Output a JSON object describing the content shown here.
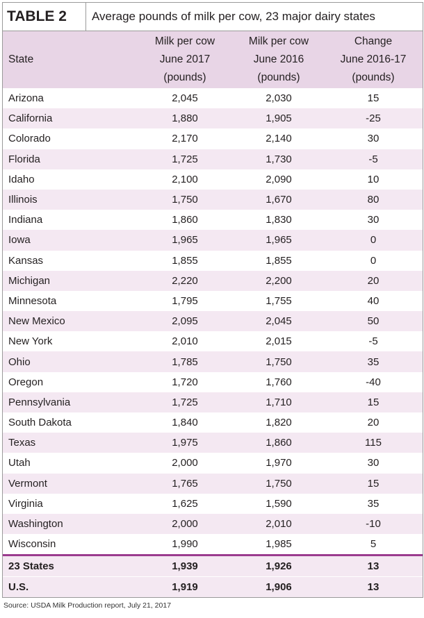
{
  "header": {
    "label": "TABLE 2",
    "title": "Average pounds of milk per cow, 23 major dairy states"
  },
  "table": {
    "columns": [
      [
        "State"
      ],
      [
        "Milk per cow",
        "June 2017",
        "(pounds)"
      ],
      [
        "Milk per cow",
        "June 2016",
        "(pounds)"
      ],
      [
        "Change",
        "June 2016-17",
        "(pounds)"
      ]
    ],
    "rows": [
      [
        "Arizona",
        "2,045",
        "2,030",
        "15"
      ],
      [
        "California",
        "1,880",
        "1,905",
        "-25"
      ],
      [
        "Colorado",
        "2,170",
        "2,140",
        "30"
      ],
      [
        "Florida",
        "1,725",
        "1,730",
        "-5"
      ],
      [
        "Idaho",
        "2,100",
        "2,090",
        "10"
      ],
      [
        "Illinois",
        "1,750",
        "1,670",
        "80"
      ],
      [
        "Indiana",
        "1,860",
        "1,830",
        "30"
      ],
      [
        "Iowa",
        "1,965",
        "1,965",
        "0"
      ],
      [
        "Kansas",
        "1,855",
        "1,855",
        "0"
      ],
      [
        "Michigan",
        "2,220",
        "2,200",
        "20"
      ],
      [
        "Minnesota",
        "1,795",
        "1,755",
        "40"
      ],
      [
        "New Mexico",
        "2,095",
        "2,045",
        "50"
      ],
      [
        "New York",
        "2,010",
        "2,015",
        "-5"
      ],
      [
        "Ohio",
        "1,785",
        "1,750",
        "35"
      ],
      [
        "Oregon",
        "1,720",
        "1,760",
        "-40"
      ],
      [
        "Pennsylvania",
        "1,725",
        "1,710",
        "15"
      ],
      [
        "South Dakota",
        "1,840",
        "1,820",
        "20"
      ],
      [
        "Texas",
        "1,975",
        "1,860",
        "115"
      ],
      [
        "Utah",
        "2,000",
        "1,970",
        "30"
      ],
      [
        "Vermont",
        "1,765",
        "1,750",
        "15"
      ],
      [
        "Virginia",
        "1,625",
        "1,590",
        "35"
      ],
      [
        "Washington",
        "2,000",
        "2,010",
        "-10"
      ],
      [
        "Wisconsin",
        "1,990",
        "1,985",
        "5"
      ]
    ],
    "totals": [
      [
        "23 States",
        "1,939",
        "1,926",
        "13"
      ],
      [
        "U.S.",
        "1,919",
        "1,906",
        "13"
      ]
    ]
  },
  "source": "Source: USDA Milk Production report, July 21, 2017"
}
